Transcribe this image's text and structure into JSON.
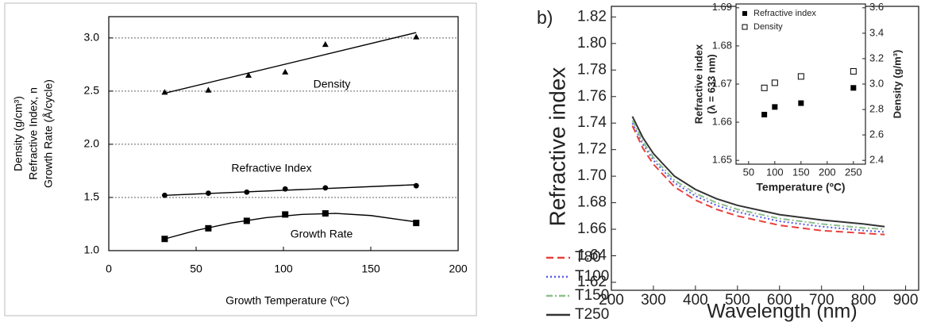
{
  "chart_data": [
    {
      "type": "scatter",
      "xlabel": "Growth Temperature (ºC)",
      "ylabel": [
        "Density (g/cm³)",
        "Refractive Index, n",
        "Growth Rate (Å/cycle)"
      ],
      "xlim": [
        0,
        200
      ],
      "xticks": [
        0,
        50,
        100,
        150,
        200
      ],
      "ylim": [
        1.0,
        3.2
      ],
      "yticks": [
        {
          "value": 1.0,
          "label": "1.0"
        },
        1.5,
        {
          "value": 2.0,
          "label": "2.0"
        },
        2.5,
        {
          "value": 3.0,
          "label": "3.0"
        }
      ],
      "grid": true,
      "series": [
        {
          "name": "Density",
          "marker": "triangle",
          "color": "#000000",
          "x": [
            32,
            57,
            80,
            101,
            124,
            176
          ],
          "values": [
            2.49,
            2.51,
            2.65,
            2.68,
            2.94,
            3.01
          ],
          "fit_x": [
            32,
            176
          ],
          "fit_values": [
            2.48,
            3.05
          ]
        },
        {
          "name": "Refractive Index",
          "marker": "circle",
          "color": "#000000",
          "x": [
            32,
            57,
            79,
            101,
            124,
            176
          ],
          "values": [
            1.52,
            1.54,
            1.55,
            1.58,
            1.59,
            1.61
          ],
          "fit_x": [
            32,
            176
          ],
          "fit_values": [
            1.52,
            1.62
          ]
        },
        {
          "name": "Growth Rate",
          "marker": "square",
          "color": "#000000",
          "x": [
            32,
            57,
            79,
            101,
            124,
            176
          ],
          "values": [
            1.11,
            1.21,
            1.28,
            1.34,
            1.35,
            1.26
          ],
          "fit_x": [
            32,
            50,
            70,
            90,
            110,
            130,
            150,
            176
          ],
          "fit_values": [
            1.11,
            1.19,
            1.26,
            1.31,
            1.34,
            1.35,
            1.33,
            1.27
          ]
        }
      ]
    },
    {
      "type": "line",
      "panel_label": "b)",
      "xlabel": "Wavelength (nm)",
      "ylabel": "Refractive index",
      "xlim": [
        200,
        931
      ],
      "xticks": [
        200,
        300,
        400,
        500,
        600,
        700,
        800,
        900
      ],
      "ylim": [
        1.614,
        1.828
      ],
      "yticks": [
        1.62,
        1.64,
        1.66,
        1.68,
        {
          "value": 1.7,
          "label": "1.70"
        },
        1.72,
        1.74,
        1.76,
        1.78,
        {
          "value": 1.8,
          "label": "1.80"
        },
        1.82
      ],
      "legend": "left",
      "x": [
        250,
        275,
        300,
        350,
        400,
        450,
        500,
        600,
        700,
        800,
        850
      ],
      "series": [
        {
          "name": "T80",
          "color": "#e8403a",
          "dash": "dashed",
          "values": [
            1.738,
            1.721,
            1.709,
            1.692,
            1.682,
            1.675,
            1.67,
            1.663,
            1.659,
            1.657,
            1.656
          ]
        },
        {
          "name": "T100",
          "color": "#5a5ae6",
          "dash": "dotted",
          "values": [
            1.74,
            1.724,
            1.712,
            1.695,
            1.685,
            1.678,
            1.673,
            1.666,
            1.662,
            1.659,
            1.658
          ]
        },
        {
          "name": "T150",
          "color": "#8cc08c",
          "dash": "dashdot",
          "values": [
            1.742,
            1.726,
            1.714,
            1.697,
            1.687,
            1.68,
            1.675,
            1.668,
            1.664,
            1.661,
            1.66
          ]
        },
        {
          "name": "T250",
          "color": "#333333",
          "dash": "solid",
          "values": [
            1.745,
            1.729,
            1.717,
            1.7,
            1.69,
            1.683,
            1.678,
            1.671,
            1.667,
            1.664,
            1.662
          ]
        }
      ],
      "inset": {
        "type": "scatter",
        "xlabel": "Temperature (ºC)",
        "ylabel": [
          "Refractive index",
          "(λ = 633 nm)"
        ],
        "y2label": "Density (g/m³)",
        "xlim": [
          26,
          273
        ],
        "xticks": [
          50,
          100,
          150,
          200,
          250
        ],
        "ylim": [
          1.649,
          1.691
        ],
        "yticks": [
          1.65,
          1.66,
          1.67,
          1.68,
          1.69
        ],
        "y2lim": [
          2.37,
          3.63
        ],
        "y2ticks": [
          2.4,
          2.6,
          2.8,
          {
            "value": 3.0,
            "label": "3.0"
          },
          3.2,
          3.4,
          3.6
        ],
        "legend": "upper left",
        "series": [
          {
            "name": "Refractive index",
            "marker": "square",
            "color": "#000000",
            "x": [
              80,
              100,
              150,
              250
            ],
            "values": [
              1.662,
              1.664,
              1.665,
              1.669
            ]
          },
          {
            "name": "Density",
            "marker": "square-open",
            "color": "#000000",
            "axis": "y2",
            "x": [
              80,
              100,
              150,
              250
            ],
            "values": [
              2.97,
              3.01,
              3.06,
              3.1
            ]
          }
        ]
      }
    }
  ]
}
